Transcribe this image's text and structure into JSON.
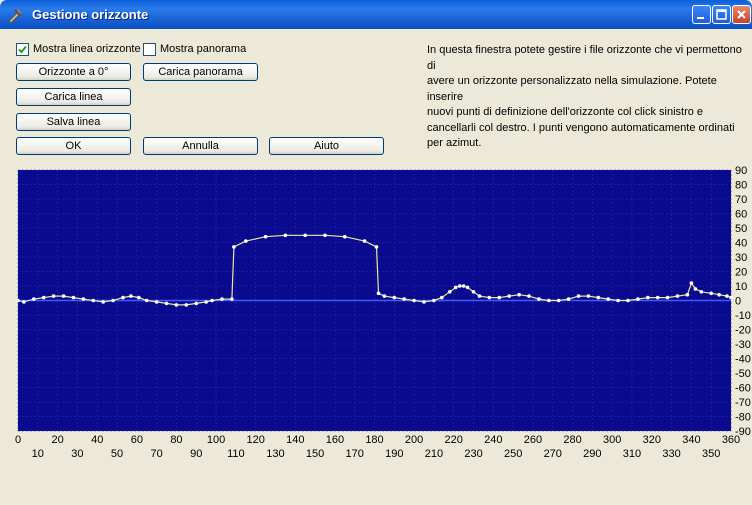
{
  "window": {
    "title": "Gestione orizzonte",
    "icon": "horizon-tool-icon",
    "controls": [
      "minimize-icon",
      "maximize-icon",
      "close-icon"
    ]
  },
  "options": {
    "show_horizon_line": {
      "label": "Mostra linea orizzonte",
      "checked": true
    },
    "show_panorama": {
      "label": "Mostra panorama",
      "checked": false
    }
  },
  "buttons": {
    "horizon_zero": "Orizzonte a 0°",
    "load_panorama": "Carica panorama",
    "load_line": "Carica linea",
    "save_line": "Salva linea",
    "ok": "OK",
    "cancel": "Annulla",
    "help": "Aiuto"
  },
  "description": [
    "In questa finestra potete gestire i file orizzonte che vi permettono di",
    "avere un orizzonte personalizzato nella simulazione. Potete inserire",
    "nuovi punti di definizione dell'orizzonte col click sinistro e",
    "cancellarli col destro. I punti vengono automaticamente ordinati",
    "per azimut."
  ],
  "chart_data": {
    "type": "line",
    "background_color": "#0a0a8e",
    "line_color": "#e8e8a0",
    "point_color": "#ffffff",
    "zero_line_color": "#3c5cff",
    "grid": true,
    "xlim": [
      0,
      360
    ],
    "ylim": [
      -90,
      90
    ],
    "x_ticks_upper": [
      0,
      20,
      40,
      60,
      80,
      100,
      120,
      140,
      160,
      180,
      200,
      220,
      240,
      260,
      280,
      300,
      320,
      340,
      360
    ],
    "x_ticks_lower": [
      10,
      30,
      50,
      70,
      90,
      110,
      130,
      150,
      170,
      190,
      210,
      230,
      250,
      270,
      290,
      310,
      330,
      350
    ],
    "y_ticks": [
      90,
      80,
      70,
      60,
      50,
      40,
      30,
      20,
      10,
      0,
      -10,
      -20,
      -30,
      -40,
      -50,
      -60,
      -70,
      -80,
      -90
    ],
    "points": [
      [
        0,
        0
      ],
      [
        3,
        -1
      ],
      [
        8,
        1
      ],
      [
        13,
        2
      ],
      [
        18,
        3
      ],
      [
        23,
        3
      ],
      [
        28,
        2
      ],
      [
        33,
        1
      ],
      [
        38,
        0
      ],
      [
        43,
        -1
      ],
      [
        48,
        0
      ],
      [
        53,
        2
      ],
      [
        57,
        3
      ],
      [
        61,
        2
      ],
      [
        65,
        0
      ],
      [
        70,
        -1
      ],
      [
        75,
        -2
      ],
      [
        80,
        -3
      ],
      [
        85,
        -3
      ],
      [
        90,
        -2
      ],
      [
        95,
        -1
      ],
      [
        98,
        0
      ],
      [
        103,
        1
      ],
      [
        108,
        1
      ],
      [
        109,
        37
      ],
      [
        115,
        41
      ],
      [
        125,
        44
      ],
      [
        135,
        45
      ],
      [
        145,
        45
      ],
      [
        155,
        45
      ],
      [
        165,
        44
      ],
      [
        175,
        41
      ],
      [
        181,
        37
      ],
      [
        182,
        5
      ],
      [
        185,
        3
      ],
      [
        190,
        2
      ],
      [
        195,
        1
      ],
      [
        200,
        0
      ],
      [
        205,
        -1
      ],
      [
        210,
        0
      ],
      [
        214,
        2
      ],
      [
        218,
        6
      ],
      [
        221,
        9
      ],
      [
        223,
        10
      ],
      [
        225,
        10
      ],
      [
        227,
        9
      ],
      [
        230,
        6
      ],
      [
        233,
        3
      ],
      [
        238,
        2
      ],
      [
        243,
        2
      ],
      [
        248,
        3
      ],
      [
        253,
        4
      ],
      [
        258,
        3
      ],
      [
        263,
        1
      ],
      [
        268,
        0
      ],
      [
        273,
        0
      ],
      [
        278,
        1
      ],
      [
        283,
        3
      ],
      [
        288,
        3
      ],
      [
        293,
        2
      ],
      [
        298,
        1
      ],
      [
        303,
        0
      ],
      [
        308,
        0
      ],
      [
        313,
        1
      ],
      [
        318,
        2
      ],
      [
        323,
        2
      ],
      [
        328,
        2
      ],
      [
        333,
        3
      ],
      [
        338,
        4
      ],
      [
        340,
        12
      ],
      [
        342,
        8
      ],
      [
        345,
        6
      ],
      [
        350,
        5
      ],
      [
        354,
        4
      ],
      [
        358,
        3
      ],
      [
        360,
        2
      ]
    ]
  }
}
